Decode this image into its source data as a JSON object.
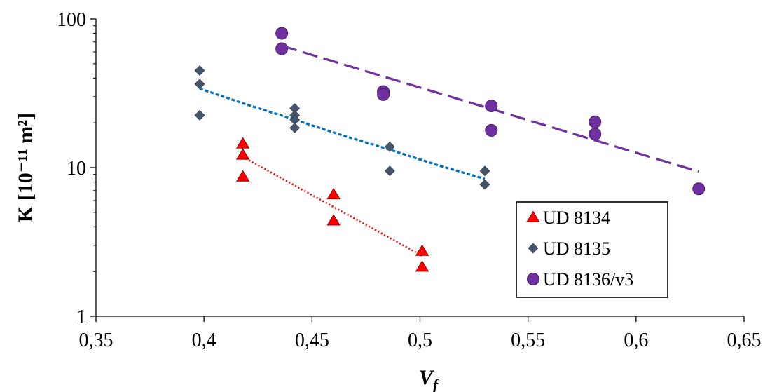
{
  "chart_data": {
    "type": "scatter",
    "xlabel": "V",
    "xlabel_subscript": "f",
    "ylabel": "K [10⁻¹¹ m²]",
    "x_range": [
      0.35,
      0.65
    ],
    "y_range": [
      1,
      100
    ],
    "y_scale": "log",
    "x_ticks": [
      {
        "value": 0.35,
        "label": "0,35"
      },
      {
        "value": 0.4,
        "label": "0,4"
      },
      {
        "value": 0.45,
        "label": "0,45"
      },
      {
        "value": 0.5,
        "label": "0,5"
      },
      {
        "value": 0.55,
        "label": "0,55"
      },
      {
        "value": 0.6,
        "label": "0,6"
      },
      {
        "value": 0.65,
        "label": "0,65"
      }
    ],
    "y_ticks": [
      {
        "value": 1,
        "label": "1"
      },
      {
        "value": 10,
        "label": "10"
      },
      {
        "value": 100,
        "label": "100"
      }
    ],
    "grid": false,
    "legend_position": "bottom-right",
    "series": [
      {
        "name": "UD 8134",
        "marker": "triangle",
        "color": "#ff0000",
        "trendline_style": "dotted",
        "trendline_color": "#ff0000",
        "points": [
          {
            "x": 0.418,
            "y": 14.5
          },
          {
            "x": 0.418,
            "y": 12.2
          },
          {
            "x": 0.418,
            "y": 8.7
          },
          {
            "x": 0.46,
            "y": 6.6
          },
          {
            "x": 0.46,
            "y": 4.4
          },
          {
            "x": 0.501,
            "y": 2.75
          },
          {
            "x": 0.501,
            "y": 2.15
          }
        ],
        "trendline": [
          {
            "x": 0.418,
            "y": 11.8
          },
          {
            "x": 0.501,
            "y": 2.55
          }
        ]
      },
      {
        "name": "UD 8135",
        "marker": "diamond",
        "color": "#44546a",
        "trendline_style": "dashed-short",
        "trendline_color": "#0070c0",
        "points": [
          {
            "x": 0.398,
            "y": 45
          },
          {
            "x": 0.398,
            "y": 36.5
          },
          {
            "x": 0.398,
            "y": 22.5
          },
          {
            "x": 0.442,
            "y": 25
          },
          {
            "x": 0.442,
            "y": 22.5
          },
          {
            "x": 0.442,
            "y": 21
          },
          {
            "x": 0.442,
            "y": 18.5
          },
          {
            "x": 0.486,
            "y": 13.8
          },
          {
            "x": 0.486,
            "y": 9.5
          },
          {
            "x": 0.53,
            "y": 9.5
          },
          {
            "x": 0.53,
            "y": 7.7
          }
        ],
        "trendline": [
          {
            "x": 0.398,
            "y": 34
          },
          {
            "x": 0.42,
            "y": 26.5
          },
          {
            "x": 0.442,
            "y": 21
          },
          {
            "x": 0.464,
            "y": 16.5
          },
          {
            "x": 0.486,
            "y": 13.2
          },
          {
            "x": 0.508,
            "y": 10.4
          },
          {
            "x": 0.53,
            "y": 8.4
          }
        ]
      },
      {
        "name": "UD 8136/v3",
        "marker": "circle",
        "color": "#7030a0",
        "trendline_style": "dashed-long",
        "trendline_color": "#7030a0",
        "points": [
          {
            "x": 0.436,
            "y": 80
          },
          {
            "x": 0.436,
            "y": 63
          },
          {
            "x": 0.483,
            "y": 32.5
          },
          {
            "x": 0.483,
            "y": 31
          },
          {
            "x": 0.533,
            "y": 26
          },
          {
            "x": 0.533,
            "y": 17.8
          },
          {
            "x": 0.581,
            "y": 20.3
          },
          {
            "x": 0.581,
            "y": 16.8
          },
          {
            "x": 0.629,
            "y": 7.2
          }
        ],
        "trendline": [
          {
            "x": 0.436,
            "y": 66
          },
          {
            "x": 0.629,
            "y": 9.4
          }
        ]
      }
    ]
  }
}
